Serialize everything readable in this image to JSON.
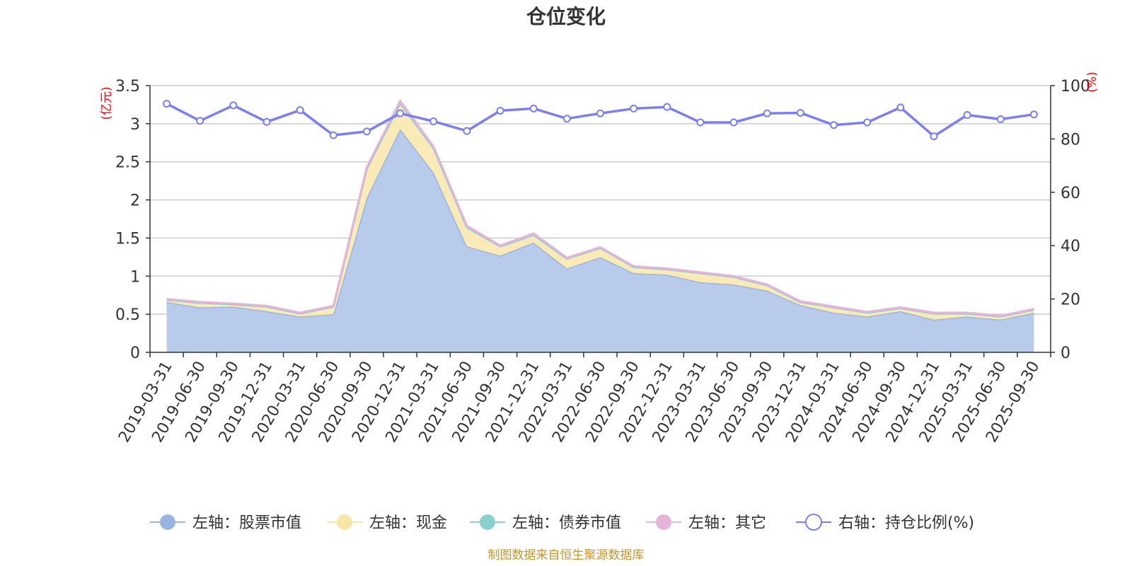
{
  "chart_data": {
    "type": "area",
    "title": "仓位变化",
    "left_unit": "(亿元)",
    "right_unit": "(%)",
    "categories": [
      "2019-03-31",
      "2019-06-30",
      "2019-09-30",
      "2019-12-31",
      "2020-03-31",
      "2020-06-30",
      "2020-09-30",
      "2020-12-31",
      "2021-03-31",
      "2021-06-30",
      "2021-09-30",
      "2021-12-31",
      "2022-03-31",
      "2022-06-30",
      "2022-09-30",
      "2022-12-31",
      "2023-03-31",
      "2023-06-30",
      "2023-09-30",
      "2023-12-31",
      "2024-03-31",
      "2024-06-30",
      "2024-09-30",
      "2024-12-31",
      "2025-03-31",
      "2025-06-30",
      "2025-09-30"
    ],
    "ylim_left": [
      0,
      3.5
    ],
    "yticks_left": [
      "0",
      "0.5",
      "1",
      "1.5",
      "2",
      "2.5",
      "3",
      "3.5"
    ],
    "ylim_right": [
      0,
      100
    ],
    "yticks_right": [
      "0",
      "20",
      "40",
      "60",
      "80",
      "100"
    ],
    "series": [
      {
        "name": "左轴：股票市值",
        "axis": "left",
        "color": "#9ab6e0",
        "fill": "#b8cbea",
        "values": [
          0.66,
          0.59,
          0.6,
          0.54,
          0.47,
          0.5,
          2.03,
          2.93,
          2.36,
          1.39,
          1.27,
          1.44,
          1.1,
          1.25,
          1.04,
          1.02,
          0.92,
          0.89,
          0.81,
          0.62,
          0.52,
          0.47,
          0.54,
          0.43,
          0.47,
          0.43,
          0.52
        ]
      },
      {
        "name": "左轴：现金",
        "axis": "left",
        "color": "#f7e6a5",
        "fill": "#faeab8",
        "values": [
          0.03,
          0.06,
          0.03,
          0.06,
          0.04,
          0.1,
          0.38,
          0.34,
          0.32,
          0.25,
          0.12,
          0.1,
          0.13,
          0.12,
          0.08,
          0.07,
          0.12,
          0.1,
          0.07,
          0.04,
          0.07,
          0.05,
          0.04,
          0.08,
          0.04,
          0.04,
          0.04
        ]
      },
      {
        "name": "左轴：债券市值",
        "axis": "left",
        "color": "#8ccfcf",
        "fill": "#a8dcdc",
        "values": [
          0,
          0,
          0,
          0,
          0,
          0,
          0,
          0,
          0,
          0,
          0,
          0,
          0,
          0,
          0,
          0,
          0,
          0,
          0,
          0,
          0,
          0,
          0,
          0,
          0,
          0,
          0
        ]
      },
      {
        "name": "左轴：其它",
        "axis": "left",
        "color": "#e6b4d8",
        "fill": "#efc9e3",
        "values": [
          0.01,
          0.01,
          0.01,
          0.01,
          0.01,
          0.01,
          0.02,
          0.03,
          0.02,
          0.02,
          0.01,
          0.02,
          0.01,
          0.01,
          0.01,
          0.01,
          0.01,
          0.01,
          0.01,
          0.01,
          0.01,
          0.01,
          0.01,
          0.01,
          0.01,
          0.01,
          0.01
        ]
      },
      {
        "name": "右轴：持仓比例(%)",
        "axis": "right",
        "type": "line",
        "color": "#7b7ff0",
        "values": [
          93.2,
          86.8,
          92.6,
          86.4,
          90.8,
          81.4,
          82.8,
          89.6,
          86.6,
          83.0,
          90.6,
          91.4,
          87.6,
          89.6,
          91.4,
          92.0,
          86.2,
          86.2,
          89.6,
          89.8,
          85.2,
          86.2,
          91.8,
          81.0,
          89.0,
          87.4,
          89.2
        ]
      }
    ],
    "legend_position": "bottom",
    "source_note": "制图数据来自恒生聚源数据库"
  }
}
